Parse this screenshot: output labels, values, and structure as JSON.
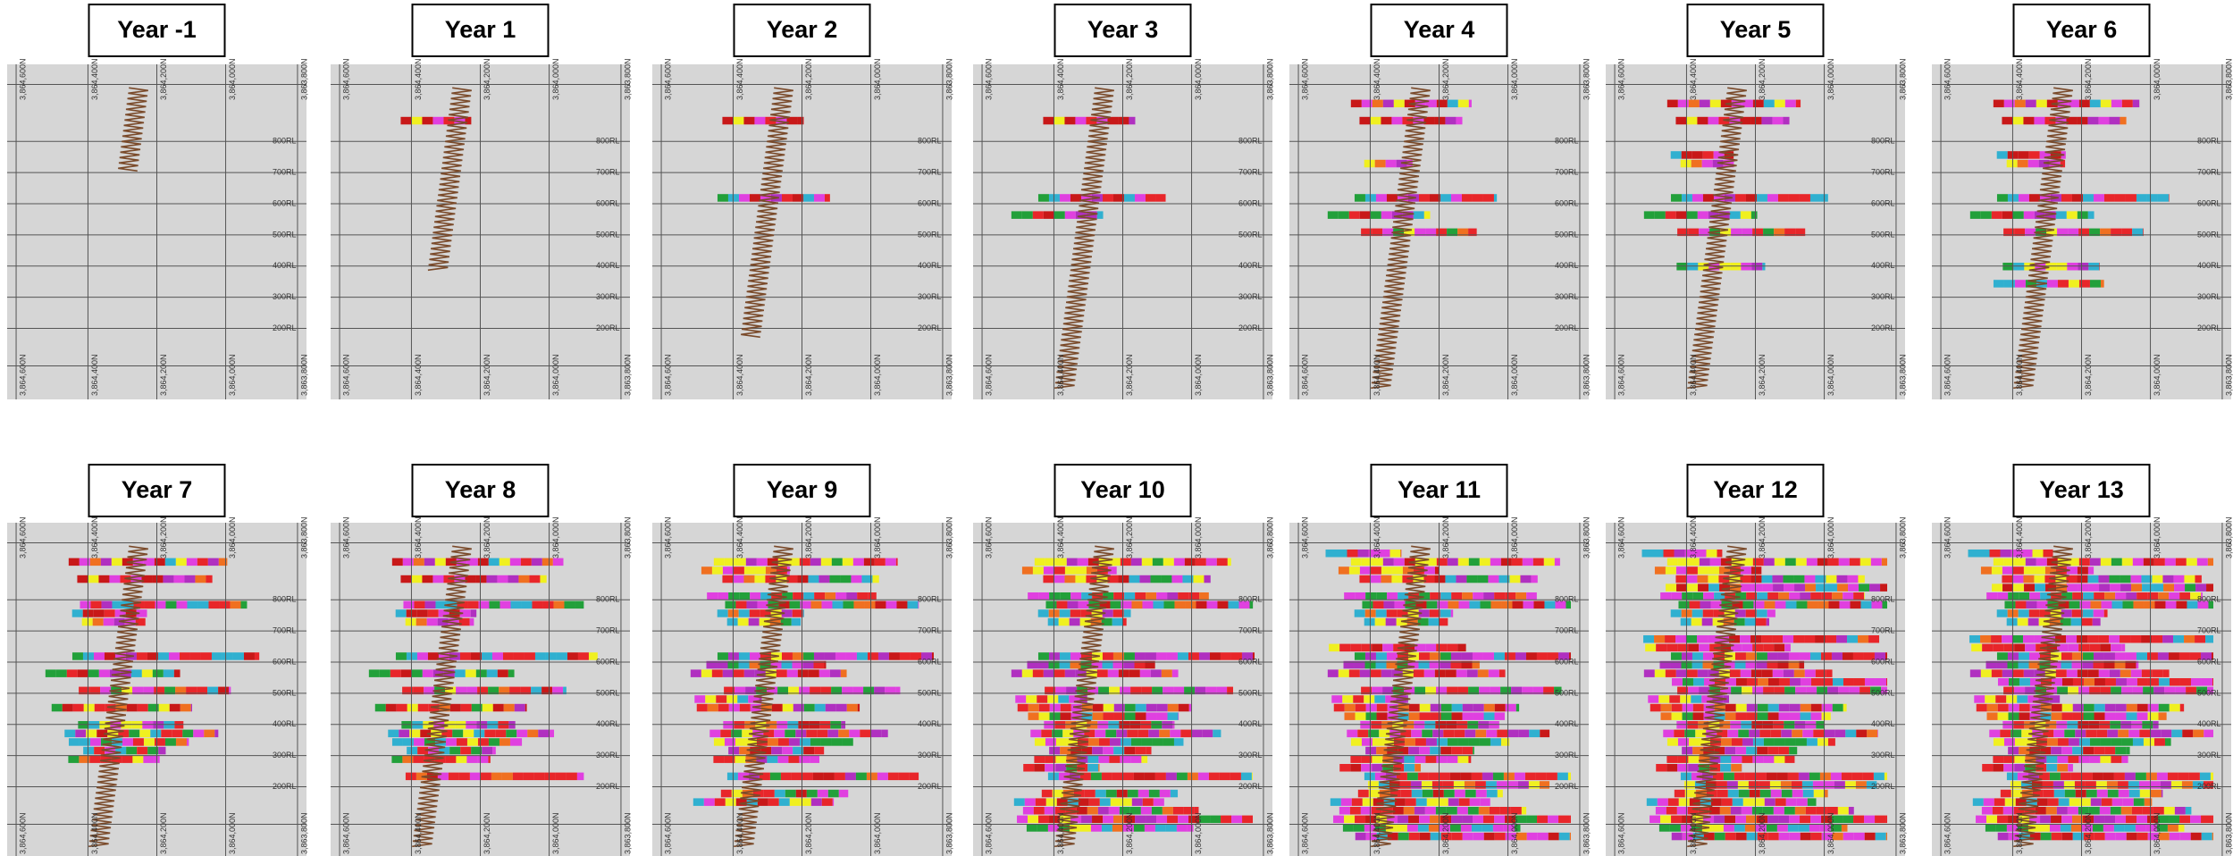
{
  "panels": [
    {
      "title": "Year -1"
    },
    {
      "title": "Year 1"
    },
    {
      "title": "Year 2"
    },
    {
      "title": "Year 3"
    },
    {
      "title": "Year 4"
    },
    {
      "title": "Year 5"
    },
    {
      "title": "Year 6"
    },
    {
      "title": "Year 7"
    },
    {
      "title": "Year 8"
    },
    {
      "title": "Year 9"
    },
    {
      "title": "Year 10"
    },
    {
      "title": "Year 11"
    },
    {
      "title": "Year 12"
    },
    {
      "title": "Year 13"
    }
  ],
  "axis": {
    "northings": [
      "3,864,600N",
      "3,864,400N",
      "3,864,200N",
      "3,864,000N",
      "3,863,800N"
    ],
    "rl": [
      "800RL",
      "700RL",
      "600RL",
      "500RL",
      "400RL",
      "300RL",
      "200RL"
    ]
  }
}
